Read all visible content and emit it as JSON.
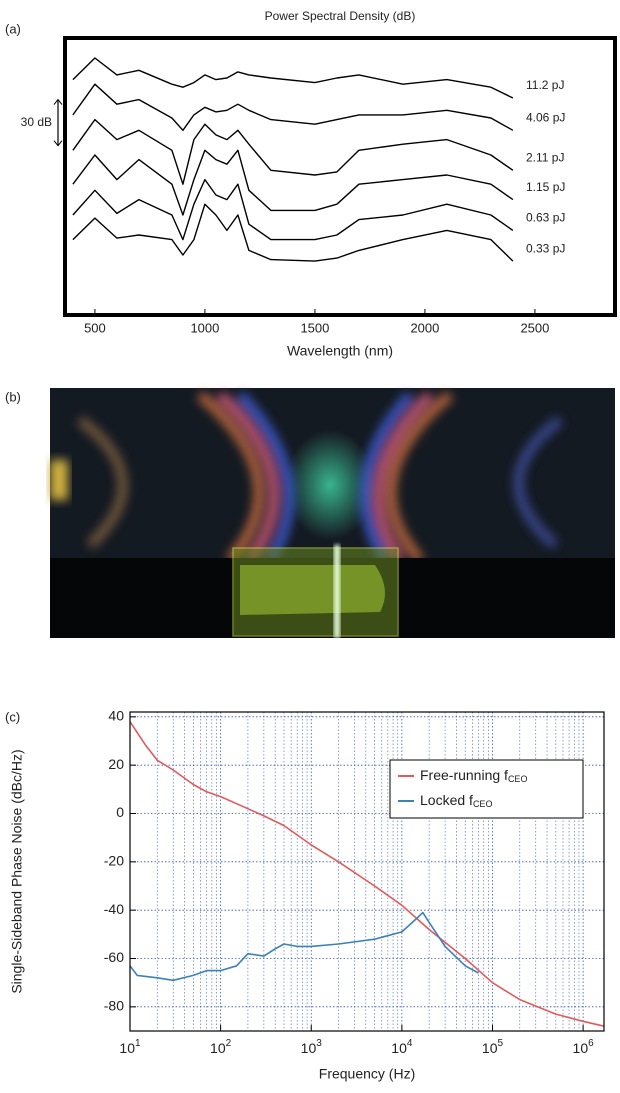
{
  "panel_labels": [
    "(a)",
    "(b)",
    "(c)"
  ],
  "chart_data": [
    {
      "type": "line",
      "title": "Power Spectral Density (dB)",
      "x_label": "Wavelength (nm)",
      "annotation": "30 dB",
      "xlim": [
        364,
        2864
      ],
      "xticks": [
        500,
        1000,
        1500,
        2000,
        2500
      ],
      "ylim": [
        0,
        180
      ],
      "scale_bar": 30,
      "x": [
        400,
        500,
        600,
        700,
        850,
        900,
        950,
        1000,
        1050,
        1100,
        1150,
        1200,
        1300,
        1500,
        1600,
        1700,
        1900,
        2100,
        2300,
        2400
      ],
      "series": [
        {
          "name": "11.2 pJ",
          "color": "#000000",
          "values": [
            153,
            167,
            156,
            159,
            150,
            148,
            151,
            156,
            153,
            154,
            158,
            156,
            154,
            151,
            154,
            156,
            150,
            153,
            148,
            141
          ]
        },
        {
          "name": "4.06 pJ",
          "color": "#000000",
          "values": [
            130,
            150,
            137,
            140,
            128,
            120,
            130,
            135,
            132,
            133,
            137,
            133,
            127,
            124,
            127,
            130,
            130,
            133,
            128,
            120
          ]
        },
        {
          "name": "2.11 pJ",
          "color": "#000000",
          "values": [
            107,
            127,
            114,
            120,
            107,
            85,
            114,
            124,
            117,
            114,
            120,
            111,
            94,
            91,
            93,
            107,
            111,
            114,
            104,
            94
          ]
        },
        {
          "name": "1.15 pJ",
          "color": "#000000",
          "values": [
            85,
            104,
            88,
            101,
            85,
            65,
            88,
            107,
            101,
            98,
            107,
            81,
            68,
            68,
            72,
            85,
            88,
            91,
            85,
            75
          ]
        },
        {
          "name": "0.63 pJ",
          "color": "#000000",
          "values": [
            65,
            81,
            66,
            75,
            65,
            49,
            72,
            88,
            78,
            75,
            85,
            59,
            49,
            49,
            52,
            62,
            65,
            72,
            65,
            55
          ]
        },
        {
          "name": "0.33 pJ",
          "color": "#000000",
          "values": [
            49,
            63,
            50,
            52,
            49,
            39,
            49,
            72,
            65,
            55,
            65,
            42,
            36,
            35,
            37,
            42,
            49,
            55,
            49,
            35
          ]
        }
      ]
    },
    {
      "type": "line",
      "log_x": true,
      "x_label": "Frequency (Hz)",
      "y_label": "Single-Sideband Phase Noise (dBc/Hz)",
      "xlim": [
        10,
        1700000
      ],
      "xticks": [
        {
          "value": 10,
          "label": "10^1"
        },
        {
          "value": 100,
          "label": "10^2"
        },
        {
          "value": 1000,
          "label": "10^3"
        },
        {
          "value": 10000,
          "label": "10^4"
        },
        {
          "value": 100000,
          "label": "10^5"
        },
        {
          "value": 1000000,
          "label": "10^6"
        }
      ],
      "ylim": [
        -90,
        42
      ],
      "yticks": [
        -80,
        -60,
        -40,
        -20,
        0,
        20,
        40
      ],
      "grid": true,
      "minor_grid": true,
      "legend": "upper right",
      "series": [
        {
          "name": "Free-running f_CEO",
          "color": "#e05a5a",
          "x": [
            10,
            15,
            20,
            30,
            50,
            70,
            100,
            200,
            300,
            500,
            1000,
            2000,
            5000,
            10000,
            20000,
            50000,
            100000,
            200000,
            500000,
            1000000,
            1700000
          ],
          "values": [
            38,
            28,
            22,
            18,
            12,
            9,
            7,
            2,
            -1,
            -5,
            -13,
            -20,
            -30,
            -38,
            -48,
            -60,
            -70,
            -77,
            -83,
            -86,
            -88
          ]
        },
        {
          "name": "Locked f_CEO",
          "color": "#3a82b8",
          "x": [
            10,
            12,
            20,
            30,
            50,
            70,
            100,
            150,
            200,
            300,
            400,
            500,
            700,
            1000,
            2000,
            5000,
            10000,
            15000,
            17000,
            20000,
            30000,
            50000,
            70000
          ],
          "values": [
            -63,
            -67,
            -68,
            -69,
            -67,
            -65,
            -65,
            -63,
            -58,
            -59,
            -56,
            -54,
            -55,
            -55,
            -54,
            -52,
            -49,
            -43,
            -41,
            -45,
            -55,
            -63,
            -66
          ]
        }
      ]
    }
  ]
}
